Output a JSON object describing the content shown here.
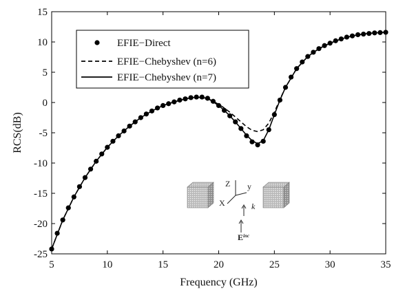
{
  "chart_data": {
    "type": "line",
    "title": "",
    "xlabel": "Frequency (GHz)",
    "ylabel": "RCS(dB)",
    "xlim": [
      5,
      35
    ],
    "ylim": [
      -25,
      15
    ],
    "xticks": [
      5,
      10,
      15,
      20,
      25,
      30,
      35
    ],
    "yticks": [
      -25,
      -20,
      -15,
      -10,
      -5,
      0,
      5,
      10,
      15
    ],
    "grid": false,
    "legend_position": "top-left",
    "legend": [
      {
        "label": "EFIE−Direct",
        "style": "dots"
      },
      {
        "label": "EFIE−Chebyshev (n=6)",
        "style": "dashed"
      },
      {
        "label": "EFIE−Chebyshev (n=7)",
        "style": "solid"
      }
    ],
    "series": [
      {
        "name": "EFIE−Direct",
        "style": "dots",
        "x": [
          5.0,
          5.5,
          6.0,
          6.5,
          7.0,
          7.5,
          8.0,
          8.5,
          9.0,
          9.5,
          10.0,
          10.5,
          11.0,
          11.5,
          12.0,
          12.5,
          13.0,
          13.5,
          14.0,
          14.5,
          15.0,
          15.5,
          16.0,
          16.5,
          17.0,
          17.5,
          18.0,
          18.5,
          19.0,
          19.5,
          20.0,
          20.5,
          21.0,
          21.5,
          22.0,
          22.5,
          23.0,
          23.5,
          24.0,
          24.5,
          25.0,
          25.5,
          26.0,
          26.5,
          27.0,
          27.5,
          28.0,
          28.5,
          29.0,
          29.5,
          30.0,
          30.5,
          31.0,
          31.5,
          32.0,
          32.5,
          33.0,
          33.5,
          34.0,
          34.5,
          35.0
        ],
        "y": [
          -24.2,
          -21.6,
          -19.4,
          -17.4,
          -15.6,
          -13.9,
          -12.4,
          -11.0,
          -9.7,
          -8.5,
          -7.4,
          -6.4,
          -5.5,
          -4.7,
          -3.9,
          -3.2,
          -2.5,
          -1.9,
          -1.4,
          -0.9,
          -0.5,
          -0.2,
          0.1,
          0.4,
          0.6,
          0.8,
          0.9,
          0.9,
          0.7,
          0.2,
          -0.5,
          -1.3,
          -2.2,
          -3.2,
          -4.3,
          -5.5,
          -6.5,
          -7.0,
          -6.4,
          -4.5,
          -2.0,
          0.4,
          2.5,
          4.2,
          5.6,
          6.7,
          7.6,
          8.3,
          8.9,
          9.4,
          9.8,
          10.2,
          10.5,
          10.8,
          11.0,
          11.2,
          11.3,
          11.4,
          11.5,
          11.55,
          11.6
        ]
      },
      {
        "name": "EFIE−Chebyshev (n=6)",
        "style": "dashed",
        "x": [
          5.0,
          6.0,
          7.0,
          8.0,
          9.0,
          10.0,
          11.0,
          12.0,
          13.0,
          14.0,
          15.0,
          16.0,
          17.0,
          18.0,
          19.0,
          20.0,
          20.5,
          21.0,
          21.5,
          22.0,
          22.5,
          23.0,
          23.5,
          24.0,
          24.5,
          25.0,
          25.5,
          26.0,
          27.0,
          28.0,
          29.0,
          30.0,
          31.0,
          32.0,
          33.0,
          34.0,
          35.0
        ],
        "y": [
          -24.2,
          -19.4,
          -15.6,
          -12.4,
          -9.7,
          -7.4,
          -5.5,
          -3.9,
          -2.5,
          -1.4,
          -0.5,
          0.1,
          0.6,
          0.9,
          0.7,
          -0.3,
          -0.9,
          -1.6,
          -2.4,
          -3.2,
          -4.0,
          -4.6,
          -4.8,
          -4.5,
          -3.4,
          -1.6,
          0.5,
          2.5,
          5.6,
          7.6,
          8.9,
          9.8,
          10.5,
          11.0,
          11.3,
          11.5,
          11.6
        ]
      },
      {
        "name": "EFIE−Chebyshev (n=7)",
        "style": "solid",
        "x": [
          5.0,
          6.0,
          7.0,
          8.0,
          9.0,
          10.0,
          11.0,
          12.0,
          13.0,
          14.0,
          15.0,
          16.0,
          17.0,
          18.0,
          19.0,
          20.0,
          20.5,
          21.0,
          21.5,
          22.0,
          22.5,
          23.0,
          23.5,
          24.0,
          24.5,
          25.0,
          25.5,
          26.0,
          27.0,
          28.0,
          29.0,
          30.0,
          31.0,
          32.0,
          33.0,
          34.0,
          35.0
        ],
        "y": [
          -24.2,
          -19.4,
          -15.6,
          -12.4,
          -9.7,
          -7.4,
          -5.5,
          -3.9,
          -2.5,
          -1.4,
          -0.5,
          0.1,
          0.6,
          0.9,
          0.7,
          -0.5,
          -1.3,
          -2.2,
          -3.2,
          -4.3,
          -5.4,
          -6.3,
          -6.8,
          -6.3,
          -4.5,
          -2.0,
          0.4,
          2.5,
          5.6,
          7.6,
          8.9,
          9.8,
          10.5,
          11.0,
          11.3,
          11.5,
          11.6
        ]
      }
    ],
    "inset": {
      "axis_labels": [
        "Z",
        "y",
        "X",
        "k"
      ],
      "field_label": "E",
      "field_superscript": "inc",
      "objects": [
        "cube-left",
        "cube-right"
      ]
    }
  }
}
